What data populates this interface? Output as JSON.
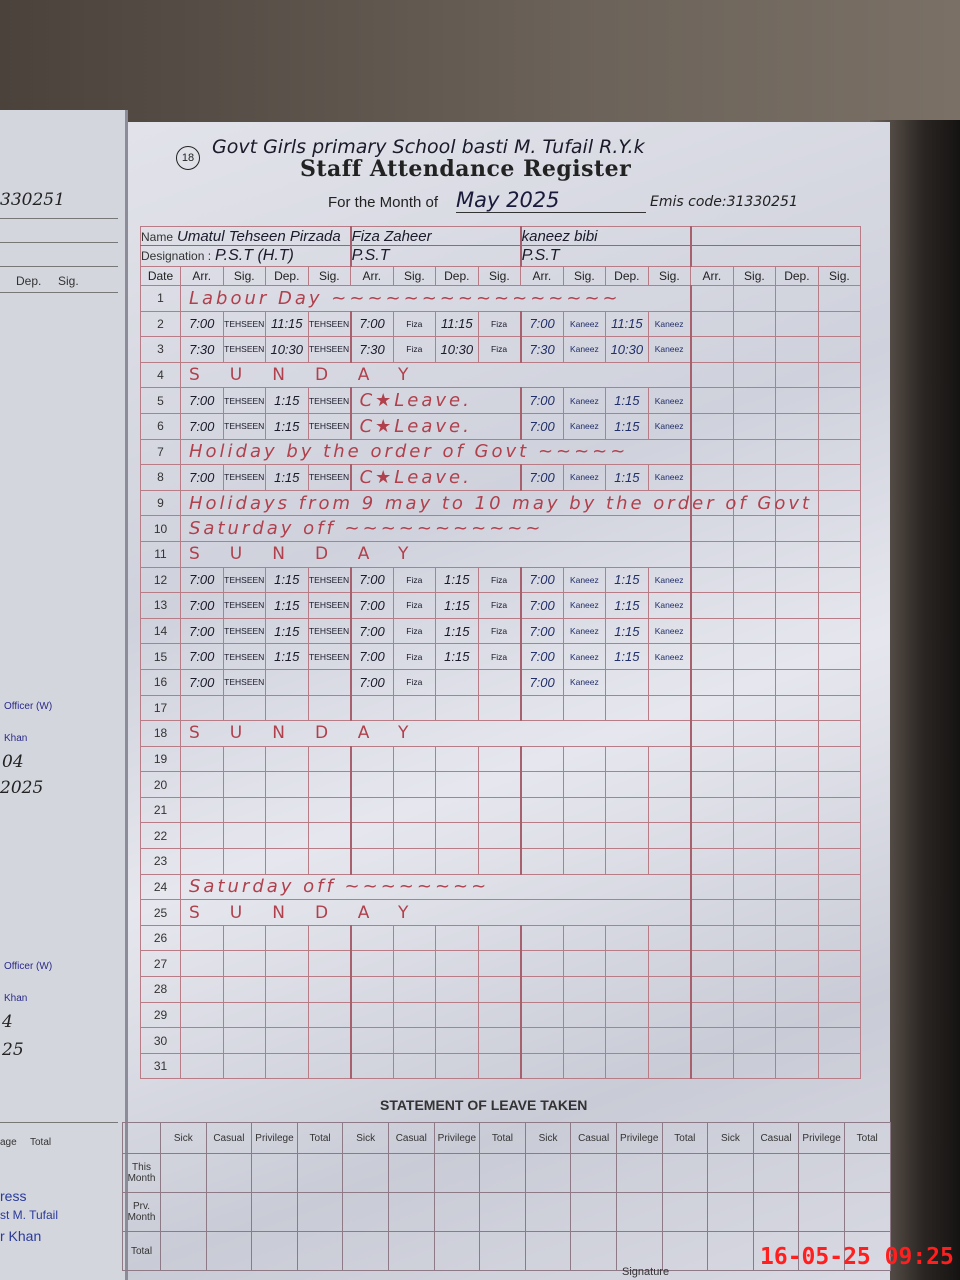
{
  "left_page": {
    "emis_fragment": "330251",
    "headers": [
      "Dep.",
      "Sig."
    ],
    "stamp_lines": [
      "Officer (W)",
      "Khan",
      "04",
      "2025",
      "Officer (W)",
      "Khan",
      "4",
      "25"
    ],
    "leave_headers": [
      "age",
      "Total"
    ],
    "bottom_stamp": [
      "ress",
      "st M. Tufail",
      "r Khan"
    ]
  },
  "register": {
    "page_no": "18",
    "school": "Govt Girls primary School basti M. Tufail R.Y.k",
    "title": "Staff Attendance Register",
    "month_label": "For the Month of",
    "month_value": "May 2025",
    "emis": "Emis code:31330251",
    "name_label": "Name",
    "designation_label": "Designation :",
    "staff": [
      {
        "name": "Umatul Tehseen Pirzada",
        "designation": "P.S.T (H.T)"
      },
      {
        "name": "Fiza Zaheer",
        "designation": "P.S.T"
      },
      {
        "name": "kaneez bibi",
        "designation": "P.S.T"
      },
      {
        "name": "",
        "designation": ""
      }
    ],
    "column_headers": [
      "Date",
      "Arr.",
      "Sig.",
      "Dep.",
      "Sig.",
      "Arr.",
      "Sig.",
      "Dep.",
      "Sig.",
      "Arr.",
      "Sig.",
      "Dep.",
      "Sig.",
      "Arr.",
      "Sig.",
      "Dep.",
      "Sig."
    ],
    "rows": [
      {
        "date": "1",
        "segments": [
          {
            "note": "Labour Day ~~~~~~~~~~~~~~~~",
            "span": 12
          }
        ]
      },
      {
        "date": "2",
        "segments": [
          {
            "cells": [
              "7:00",
              "TEHSEEN",
              "11:15",
              "TEHSEEN",
              "7:00",
              "Fiza",
              "11:15",
              "Fiza",
              "7:00",
              "Kaneez",
              "11:15",
              "Kaneez"
            ]
          }
        ]
      },
      {
        "date": "3",
        "segments": [
          {
            "cells": [
              "7:30",
              "TEHSEEN",
              "10:30",
              "TEHSEEN",
              "7:30",
              "Fiza",
              "10:30",
              "Fiza",
              "7:30",
              "Kaneez",
              "10:30",
              "Kaneez"
            ]
          }
        ]
      },
      {
        "date": "4",
        "segments": [
          {
            "note": "SUNDAY",
            "span": 12,
            "sunday": true
          }
        ]
      },
      {
        "date": "5",
        "segments": [
          {
            "cells": [
              "7:00",
              "TEHSEEN",
              "1:15",
              "TEHSEEN"
            ]
          },
          {
            "note": "C★Leave.",
            "span": 4
          },
          {
            "cells": [
              "7:00",
              "Kaneez",
              "1:15",
              "Kaneez"
            ]
          }
        ]
      },
      {
        "date": "6",
        "segments": [
          {
            "cells": [
              "7:00",
              "TEHSEEN",
              "1:15",
              "TEHSEEN"
            ]
          },
          {
            "note": "C★Leave.",
            "span": 4
          },
          {
            "cells": [
              "7:00",
              "Kaneez",
              "1:15",
              "Kaneez"
            ]
          }
        ]
      },
      {
        "date": "7",
        "segments": [
          {
            "note": "Holiday by the order of Govt ~~~~~",
            "span": 12
          }
        ]
      },
      {
        "date": "8",
        "segments": [
          {
            "cells": [
              "7:00",
              "TEHSEEN",
              "1:15",
              "TEHSEEN"
            ]
          },
          {
            "note": "C★Leave.",
            "span": 4
          },
          {
            "cells": [
              "7:00",
              "Kaneez",
              "1:15",
              "Kaneez"
            ]
          }
        ]
      },
      {
        "date": "9",
        "segments": [
          {
            "note": "Holidays from 9 may to 10 may by the order of Govt",
            "span": 12
          }
        ]
      },
      {
        "date": "10",
        "segments": [
          {
            "note": "Saturday off ~~~~~~~~~~~",
            "span": 12
          }
        ]
      },
      {
        "date": "11",
        "segments": [
          {
            "note": "SUNDAY",
            "span": 12,
            "sunday": true
          }
        ]
      },
      {
        "date": "12",
        "segments": [
          {
            "cells": [
              "7:00",
              "TEHSEEN",
              "1:15",
              "TEHSEEN",
              "7:00",
              "Fiza",
              "1:15",
              "Fiza",
              "7:00",
              "Kaneez",
              "1:15",
              "Kaneez"
            ]
          }
        ]
      },
      {
        "date": "13",
        "segments": [
          {
            "cells": [
              "7:00",
              "TEHSEEN",
              "1:15",
              "TEHSEEN",
              "7:00",
              "Fiza",
              "1:15",
              "Fiza",
              "7:00",
              "Kaneez",
              "1:15",
              "Kaneez"
            ]
          }
        ]
      },
      {
        "date": "14",
        "segments": [
          {
            "cells": [
              "7:00",
              "TEHSEEN",
              "1:15",
              "TEHSEEN",
              "7:00",
              "Fiza",
              "1:15",
              "Fiza",
              "7:00",
              "Kaneez",
              "1:15",
              "Kaneez"
            ]
          }
        ]
      },
      {
        "date": "15",
        "segments": [
          {
            "cells": [
              "7:00",
              "TEHSEEN",
              "1:15",
              "TEHSEEN",
              "7:00",
              "Fiza",
              "1:15",
              "Fiza",
              "7:00",
              "Kaneez",
              "1:15",
              "Kaneez"
            ]
          }
        ]
      },
      {
        "date": "16",
        "segments": [
          {
            "cells": [
              "7:00",
              "TEHSEEN",
              "",
              "",
              "7:00",
              "Fiza",
              "",
              "",
              "7:00",
              "Kaneez",
              "",
              ""
            ]
          }
        ]
      },
      {
        "date": "17",
        "segments": []
      },
      {
        "date": "18",
        "segments": [
          {
            "note": "SUNDAY",
            "span": 12,
            "sunday": true
          }
        ]
      },
      {
        "date": "19",
        "segments": []
      },
      {
        "date": "20",
        "segments": []
      },
      {
        "date": "21",
        "segments": []
      },
      {
        "date": "22",
        "segments": []
      },
      {
        "date": "23",
        "segments": []
      },
      {
        "date": "24",
        "segments": [
          {
            "note": "Saturday off ~~~~~~~~",
            "span": 12
          }
        ]
      },
      {
        "date": "25",
        "segments": [
          {
            "note": "SUNDAY",
            "span": 12,
            "sunday": true
          }
        ]
      },
      {
        "date": "26",
        "segments": []
      },
      {
        "date": "27",
        "segments": []
      },
      {
        "date": "28",
        "segments": []
      },
      {
        "date": "29",
        "segments": []
      },
      {
        "date": "30",
        "segments": []
      },
      {
        "date": "31",
        "segments": []
      }
    ]
  },
  "leave_statement": {
    "title": "STATEMENT OF LEAVE TAKEN",
    "columns": [
      "Sick",
      "Casual",
      "Privilege",
      "Total"
    ],
    "row_labels": [
      "This Month",
      "Prv. Month",
      "Total"
    ]
  },
  "footer": {
    "signature_label": "Signature",
    "timestamp": "16-05-25  09:25",
    "timestamp_color": "#ff1f1f"
  }
}
